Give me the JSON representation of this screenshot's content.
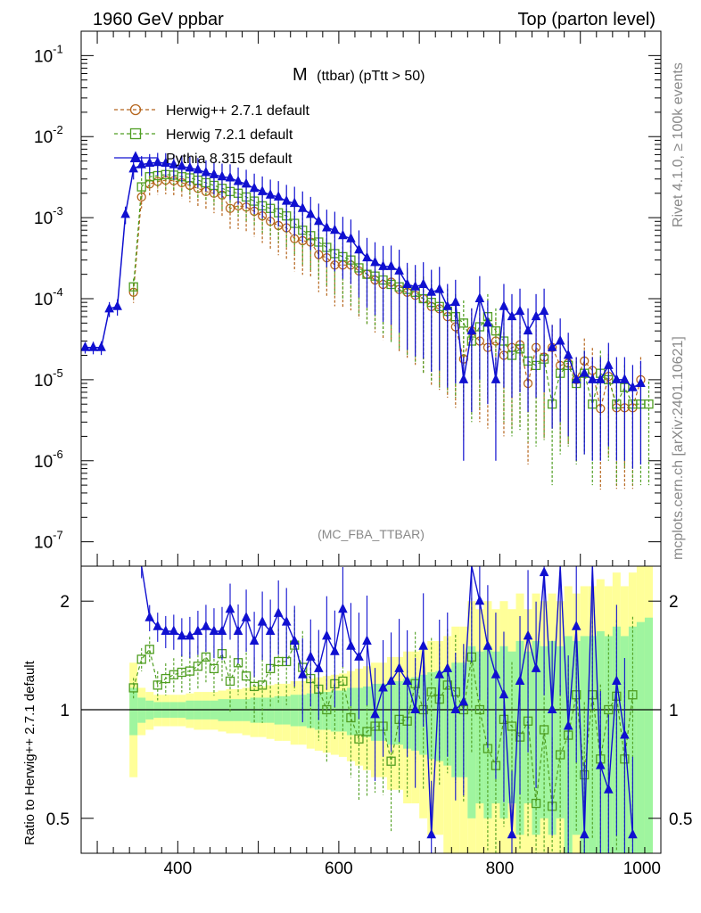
{
  "header": {
    "left": "1960 GeV ppbar",
    "right": "Top (parton level)"
  },
  "side": {
    "top": "Rivet 4.1.0, ≥ 100k events",
    "bottom": "mcplots.cern.ch [arXiv:2401.10621]"
  },
  "watermark": "(MC_FBA_TTBAR)",
  "colors": {
    "herwig_pp": "#b5651d",
    "herwig7": "#4f9e21",
    "pythia": "#1010d0",
    "band_inner": "#9ff59f",
    "band_outer": "#ffff99"
  },
  "chart_data": [
    {
      "type": "line",
      "panel": "main",
      "title": "M",
      "title_sub": "(ttbar) (pTtt > 50)",
      "yscale": "log",
      "ylim": [
        5e-08,
        0.2
      ],
      "xlim": [
        280,
        1000
      ],
      "yticks": [
        1e-07,
        1e-06,
        1e-05,
        0.0001,
        0.001,
        0.01,
        0.1
      ],
      "ytick_labels": [
        {
          "base": "10",
          "exp": "-7"
        },
        {
          "base": "10",
          "exp": "-6"
        },
        {
          "base": "10",
          "exp": "-5"
        },
        {
          "base": "10",
          "exp": "-4"
        },
        {
          "base": "10",
          "exp": "-3"
        },
        {
          "base": "10",
          "exp": "-2"
        },
        {
          "base": "10",
          "exp": "-1"
        }
      ],
      "legend": [
        "Herwig++ 2.7.1 default",
        "Herwig 7.2.1 default",
        "Pythia 8.315 default"
      ],
      "series": [
        {
          "name": "Herwig++ 2.7.1 default",
          "marker": "circle",
          "x": [
            345,
            355,
            365,
            375,
            385,
            395,
            405,
            415,
            425,
            435,
            445,
            455,
            465,
            475,
            485,
            495,
            505,
            515,
            525,
            535,
            545,
            555,
            565,
            575,
            585,
            595,
            605,
            615,
            625,
            635,
            645,
            655,
            665,
            675,
            685,
            695,
            705,
            715,
            725,
            735,
            745,
            755,
            765,
            775,
            785,
            795,
            805,
            815,
            825,
            835,
            845,
            855,
            865,
            875,
            885,
            895,
            905,
            915,
            925,
            935,
            945,
            955,
            965,
            975
          ],
          "values": [
            0.00012,
            0.0018,
            0.0026,
            0.0028,
            0.0029,
            0.00285,
            0.0027,
            0.0025,
            0.0023,
            0.0021,
            0.002,
            0.0019,
            0.0013,
            0.0014,
            0.00135,
            0.0012,
            0.00105,
            0.0009,
            0.0008,
            0.00075,
            0.00055,
            0.00052,
            0.0005,
            0.00035,
            0.00032,
            0.00026,
            0.00026,
            0.00026,
            0.00022,
            0.0002,
            0.00017,
            0.00015,
            0.00016,
            0.00013,
            0.00012,
            0.00011,
            0.0001,
            8e-05,
            7.5e-05,
            6e-05,
            4.5e-05,
            1.8e-05,
            4e-05,
            3e-05,
            2.5e-05,
            3e-05,
            2e-05,
            2.5e-05,
            2.7e-05,
            9e-06,
            2.5e-05,
            1.9e-05,
            2.5e-05,
            1.5e-05,
            1.6e-05,
            1e-05,
            1.7e-05,
            1.3e-05,
            4.4e-06,
            1.1e-05,
            4.5e-06,
            4.5e-06,
            4.5e-06,
            1e-05
          ]
        },
        {
          "name": "Herwig 7.2.1 default",
          "marker": "square",
          "x": [
            345,
            355,
            365,
            375,
            385,
            395,
            405,
            415,
            425,
            435,
            445,
            455,
            465,
            475,
            485,
            495,
            505,
            515,
            525,
            535,
            545,
            555,
            565,
            575,
            585,
            595,
            605,
            615,
            625,
            635,
            645,
            655,
            665,
            675,
            685,
            695,
            705,
            715,
            725,
            735,
            745,
            755,
            765,
            775,
            785,
            795,
            805,
            815,
            825,
            835,
            845,
            855,
            865,
            875,
            885,
            895,
            905,
            915,
            925,
            935,
            945,
            955,
            965,
            975,
            985
          ],
          "values": [
            0.00014,
            0.0024,
            0.0032,
            0.0033,
            0.0034,
            0.00335,
            0.0032,
            0.0031,
            0.0029,
            0.0027,
            0.0025,
            0.0023,
            0.0021,
            0.002,
            0.0018,
            0.0016,
            0.0014,
            0.0013,
            0.00115,
            0.00105,
            0.00085,
            0.0007,
            0.0006,
            0.0005,
            0.00043,
            0.00036,
            0.00033,
            0.0003,
            0.00024,
            0.0002,
            0.00019,
            0.00017,
            0.00015,
            0.00014,
            0.00013,
            0.00012,
            0.0001,
            9e-05,
            8e-05,
            7e-05,
            6e-05,
            5e-05,
            3e-05,
            4.5e-05,
            6e-05,
            4e-05,
            3e-05,
            2e-05,
            2.4e-05,
            1.7e-05,
            1.5e-05,
            1.8e-05,
            5e-06,
            1.2e-05,
            1.5e-05,
            9e-06,
            1.2e-05,
            5e-06,
            1.2e-05,
            1e-05,
            5e-06,
            8e-06,
            5e-06,
            5e-06,
            5e-06
          ]
        },
        {
          "name": "Pythia 8.315 default",
          "marker": "triangle",
          "x": [
            285,
            295,
            305,
            315,
            325,
            335,
            345,
            355,
            365,
            375,
            385,
            395,
            405,
            415,
            425,
            435,
            445,
            455,
            465,
            475,
            485,
            495,
            505,
            515,
            525,
            535,
            545,
            555,
            565,
            575,
            585,
            595,
            605,
            615,
            625,
            635,
            645,
            655,
            665,
            675,
            685,
            695,
            705,
            715,
            725,
            735,
            745,
            755,
            765,
            775,
            785,
            795,
            805,
            815,
            825,
            835,
            845,
            855,
            865,
            875,
            885,
            895,
            905,
            915,
            925,
            935,
            945,
            955,
            965,
            975
          ],
          "values": [
            2.5e-05,
            2.5e-05,
            2.5e-05,
            7.5e-05,
            8e-05,
            0.0011,
            0.004,
            0.0045,
            0.0047,
            0.0048,
            0.0047,
            0.0045,
            0.0043,
            0.0041,
            0.0039,
            0.0036,
            0.0034,
            0.0032,
            0.0031,
            0.0028,
            0.0026,
            0.0023,
            0.0021,
            0.0019,
            0.0018,
            0.0016,
            0.0015,
            0.0013,
            0.0011,
            0.0009,
            0.00075,
            0.0007,
            0.0006,
            0.00055,
            0.0004,
            0.00032,
            0.00028,
            0.00025,
            0.00025,
            0.00022,
            0.00015,
            0.00014,
            0.00015,
            0.00012,
            0.00013,
            8e-05,
            9e-05,
            1e-05,
            4e-05,
            0.0001,
            5e-05,
            1e-05,
            8e-05,
            6e-05,
            7e-05,
            4e-05,
            6e-05,
            7e-05,
            2.5e-05,
            3e-05,
            2e-05,
            1e-05,
            1.2e-05,
            1e-05,
            1e-05,
            1.5e-05,
            1e-05,
            1e-05,
            8e-06,
            9e-06
          ]
        }
      ]
    },
    {
      "type": "line",
      "panel": "ratio",
      "ylabel": "Ratio to Herwig++ 2.7.1 default",
      "ylim": [
        0.4,
        2.5
      ],
      "yscale": "log",
      "xlim": [
        280,
        1000
      ],
      "xticks": [
        400,
        600,
        800,
        1000
      ],
      "xtick_labels": [
        "400",
        "600",
        "800",
        "1000"
      ],
      "yticks": [
        0.5,
        1,
        2
      ],
      "ytick_labels": [
        "0.5",
        "1",
        "2"
      ],
      "reference": 1,
      "bands": {
        "x": [
          340,
          350,
          360,
          370,
          380,
          390,
          400,
          410,
          420,
          430,
          440,
          450,
          460,
          470,
          480,
          490,
          500,
          510,
          520,
          530,
          540,
          550,
          560,
          570,
          580,
          590,
          600,
          610,
          620,
          630,
          640,
          650,
          660,
          670,
          680,
          690,
          700,
          710,
          720,
          730,
          740,
          750,
          760,
          770,
          780,
          790,
          800,
          810,
          820,
          830,
          840,
          850,
          860,
          870,
          880,
          890,
          900,
          910,
          920,
          930,
          940,
          950,
          960,
          970,
          980
        ],
        "inner": [
          0.15,
          0.08,
          0.06,
          0.05,
          0.05,
          0.05,
          0.05,
          0.06,
          0.06,
          0.06,
          0.06,
          0.07,
          0.07,
          0.07,
          0.07,
          0.08,
          0.08,
          0.08,
          0.09,
          0.09,
          0.1,
          0.1,
          0.11,
          0.12,
          0.12,
          0.13,
          0.13,
          0.15,
          0.15,
          0.16,
          0.18,
          0.18,
          0.2,
          0.2,
          0.22,
          0.23,
          0.25,
          0.27,
          0.28,
          0.3,
          0.35,
          0.35,
          0.5,
          0.45,
          0.5,
          0.45,
          0.5,
          0.45,
          0.55,
          0.45,
          0.55,
          0.5,
          0.55,
          0.5,
          0.6,
          0.55,
          0.6,
          0.6,
          0.65,
          0.6,
          0.7,
          0.6,
          0.7,
          0.75,
          0.8
        ],
        "outer": [
          0.35,
          0.15,
          0.12,
          0.1,
          0.1,
          0.1,
          0.1,
          0.11,
          0.12,
          0.12,
          0.12,
          0.13,
          0.14,
          0.14,
          0.15,
          0.16,
          0.16,
          0.17,
          0.18,
          0.18,
          0.2,
          0.2,
          0.22,
          0.23,
          0.24,
          0.25,
          0.26,
          0.28,
          0.3,
          0.32,
          0.35,
          0.35,
          0.4,
          0.4,
          0.45,
          0.45,
          0.5,
          0.55,
          0.55,
          0.6,
          0.7,
          0.7,
          1.0,
          0.9,
          1.0,
          0.9,
          1.0,
          0.9,
          1.1,
          0.9,
          1.1,
          1.0,
          1.1,
          1.0,
          1.2,
          1.1,
          1.2,
          1.2,
          1.3,
          1.2,
          1.4,
          1.2,
          1.4,
          1.5,
          1.6
        ]
      },
      "series": [
        {
          "name": "Herwig 7.2.1 default",
          "marker": "square",
          "x": [
            345,
            355,
            365,
            375,
            385,
            395,
            405,
            415,
            425,
            435,
            445,
            455,
            465,
            475,
            485,
            495,
            505,
            515,
            525,
            535,
            545,
            555,
            565,
            575,
            585,
            595,
            605,
            615,
            625,
            635,
            645,
            655,
            665,
            675,
            685,
            695,
            705,
            715,
            725,
            735,
            745,
            755,
            765,
            775,
            785,
            795,
            805,
            815,
            825,
            835,
            845,
            855,
            865,
            875,
            885,
            895,
            905,
            915,
            925,
            935,
            945,
            955,
            965
          ],
          "values": [
            1.15,
            1.38,
            1.47,
            1.17,
            1.22,
            1.25,
            1.27,
            1.28,
            1.32,
            1.4,
            1.3,
            1.43,
            1.2,
            1.35,
            1.24,
            1.16,
            1.17,
            1.3,
            1.36,
            1.36,
            1.51,
            1.31,
            1.22,
            1.14,
            1.0,
            1.18,
            1.2,
            0.95,
            0.83,
            0.87,
            0.9,
            0.9,
            0.72,
            0.94,
            0.93,
            1.18,
            1.0,
            1.12,
            1.07,
            1.17,
            1.12,
            1.0,
            1.4,
            1.0,
            0.78,
            0.7,
            0.94,
            0.9,
            0.84,
            0.93,
            0.55,
            0.88,
            0.54,
            0.75,
            0.85,
            1.1,
            0.66,
            1.1,
            0.73,
            1.0,
            1.09,
            0.73,
            1.1
          ]
        },
        {
          "name": "Pythia 8.315 default",
          "marker": "triangle",
          "x": [
            355,
            365,
            375,
            385,
            395,
            405,
            415,
            425,
            435,
            445,
            455,
            465,
            475,
            485,
            495,
            505,
            515,
            525,
            535,
            545,
            555,
            565,
            575,
            585,
            595,
            605,
            615,
            625,
            635,
            645,
            655,
            665,
            675,
            685,
            695,
            705,
            715,
            725,
            735,
            745,
            755,
            765,
            775,
            785,
            795,
            805,
            815,
            825,
            835,
            845,
            855,
            865,
            875,
            885,
            895,
            905,
            915,
            925,
            935,
            945,
            955,
            965
          ],
          "values": [
            2.5,
            1.8,
            1.7,
            1.65,
            1.65,
            1.6,
            1.6,
            1.65,
            1.7,
            1.65,
            1.65,
            1.9,
            1.65,
            1.8,
            1.55,
            1.75,
            1.65,
            1.85,
            1.75,
            1.55,
            1.25,
            1.4,
            1.3,
            1.6,
            1.45,
            1.9,
            1.5,
            1.4,
            1.55,
            0.97,
            1.15,
            1.2,
            1.3,
            1.2,
            1.0,
            1.5,
            0.45,
            1.25,
            1.3,
            1.0,
            1.05,
            2.5,
            2.0,
            1.5,
            1.25,
            1.1,
            0.45,
            1.2,
            1.6,
            1.3,
            2.4,
            1.0,
            2.5,
            0.9,
            1.7,
            0.45,
            2.5,
            0.7,
            0.6,
            1.2,
            0.85,
            0.45
          ]
        }
      ]
    }
  ]
}
